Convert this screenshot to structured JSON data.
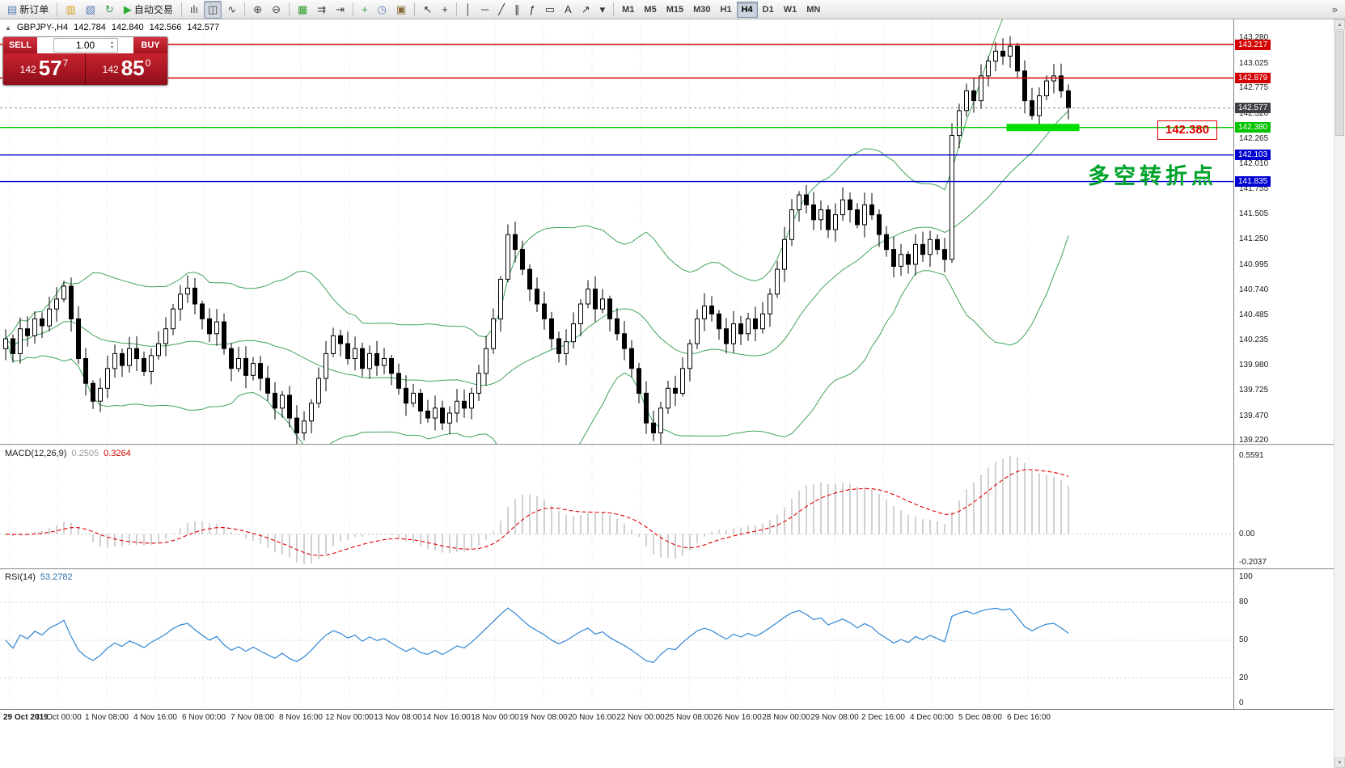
{
  "toolbar": {
    "items": [
      {
        "type": "button",
        "name": "new-order",
        "glyph": "▤",
        "glyph_color": "#5b7fb5",
        "label": "新订单"
      },
      {
        "type": "sep"
      },
      {
        "type": "button",
        "name": "new-chart",
        "glyph": "▥",
        "glyph_color": "#d7a021"
      },
      {
        "type": "button",
        "name": "profiles",
        "glyph": "▧",
        "glyph_color": "#5b7fb5"
      },
      {
        "type": "button",
        "name": "refresh",
        "glyph": "↻",
        "glyph_color": "#3f9e4f"
      },
      {
        "type": "button",
        "name": "auto-trading",
        "glyph": "▶",
        "glyph_color": "#2eaa2e",
        "label": "自动交易"
      },
      {
        "type": "sep"
      },
      {
        "type": "button",
        "name": "bar-chart-mode",
        "glyph": "ılı",
        "glyph_color": "#444444"
      },
      {
        "type": "button",
        "name": "candlestick-mode",
        "glyph": "◫",
        "glyph_color": "#444444",
        "active": true
      },
      {
        "type": "button",
        "name": "line-chart-mode",
        "glyph": "∿",
        "glyph_color": "#444444"
      },
      {
        "type": "sep"
      },
      {
        "type": "button",
        "name": "zoom-in",
        "glyph": "⊕",
        "glyph_color": "#444444"
      },
      {
        "type": "button",
        "name": "zoom-out",
        "glyph": "⊖",
        "glyph_color": "#444444"
      },
      {
        "type": "sep"
      },
      {
        "type": "button",
        "name": "tile-windows",
        "glyph": "▦",
        "glyph_color": "#2e9e2e"
      },
      {
        "type": "button",
        "name": "auto-scroll",
        "glyph": "⇉",
        "glyph_color": "#444444"
      },
      {
        "type": "button",
        "name": "chart-shift",
        "glyph": "⇥",
        "glyph_color": "#444444"
      },
      {
        "type": "sep"
      },
      {
        "type": "button",
        "name": "indicators-add",
        "glyph": "+",
        "glyph_color": "#2e9e2e"
      },
      {
        "type": "button",
        "name": "periods",
        "glyph": "◷",
        "glyph_color": "#5b7fb5"
      },
      {
        "type": "button",
        "name": "templates",
        "glyph": "▣",
        "glyph_color": "#8a6d3b"
      },
      {
        "type": "sep"
      },
      {
        "type": "button",
        "name": "cursor",
        "glyph": "↖",
        "glyph_color": "#333333"
      },
      {
        "type": "button",
        "name": "crosshair",
        "glyph": "+",
        "glyph_color": "#333333"
      },
      {
        "type": "sep"
      },
      {
        "type": "button",
        "name": "vertical-line-tool",
        "glyph": "│",
        "glyph_color": "#333333"
      },
      {
        "type": "button",
        "name": "horizontal-line-tool",
        "glyph": "─",
        "glyph_color": "#333333"
      },
      {
        "type": "button",
        "name": "trendline-tool",
        "glyph": "╱",
        "glyph_color": "#333333"
      },
      {
        "type": "button",
        "name": "channel-tool",
        "glyph": "∥",
        "glyph_color": "#333333"
      },
      {
        "type": "button",
        "name": "fibonacci-tool",
        "glyph": "ƒ",
        "glyph_color": "#333333"
      },
      {
        "type": "button",
        "name": "shapes-tool",
        "glyph": "▭",
        "glyph_color": "#333333"
      },
      {
        "type": "button",
        "name": "text-tool",
        "glyph": "A",
        "glyph_color": "#333333"
      },
      {
        "type": "button",
        "name": "arrows-tool",
        "glyph": "↗",
        "glyph_color": "#333333"
      },
      {
        "type": "button",
        "name": "objects-dropdown",
        "glyph": "▾",
        "glyph_color": "#333333"
      },
      {
        "type": "sep"
      },
      {
        "type": "tf",
        "label": "M1"
      },
      {
        "type": "tf",
        "label": "M5"
      },
      {
        "type": "tf",
        "label": "M15"
      },
      {
        "type": "tf",
        "label": "M30"
      },
      {
        "type": "tf",
        "label": "H1"
      },
      {
        "type": "tf",
        "label": "H4",
        "active": true
      },
      {
        "type": "tf",
        "label": "D1"
      },
      {
        "type": "tf",
        "label": "W1"
      },
      {
        "type": "tf",
        "label": "MN"
      },
      {
        "type": "button",
        "name": "toolbar-overflow",
        "glyph": "»",
        "glyph_color": "#555555",
        "right": true
      }
    ]
  },
  "ui": {
    "collapse": "▲",
    "stepper_up": "▴",
    "stepper_down": "▾",
    "scroll_up": "▲",
    "scroll_down": "▼"
  },
  "symbol_info": {
    "title": "GBPJPY-,H4",
    "open": "142.784",
    "high": "142.840",
    "low": "142.566",
    "close": "142.577"
  },
  "trade_panel": {
    "sell_label": "SELL",
    "buy_label": "BUY",
    "volume": "1.00",
    "sell_price": {
      "big": "142",
      "mid": "57",
      "sup": "7"
    },
    "buy_price": {
      "big": "142",
      "mid": "85",
      "sup": "0"
    }
  },
  "chart_data": {
    "type": "candlestick",
    "symbol": "GBPJPY",
    "timeframe": "H4",
    "closes": [
      140.25,
      140.1,
      140.35,
      140.28,
      140.45,
      140.38,
      140.55,
      140.65,
      140.78,
      140.45,
      140.05,
      139.8,
      139.62,
      139.75,
      139.95,
      140.1,
      139.98,
      140.15,
      140.05,
      139.92,
      140.08,
      140.2,
      140.35,
      140.55,
      140.7,
      140.76,
      140.6,
      140.45,
      140.3,
      140.42,
      140.15,
      139.95,
      140.05,
      139.88,
      140.0,
      139.85,
      139.7,
      139.55,
      139.68,
      139.45,
      139.3,
      139.42,
      139.6,
      139.85,
      140.1,
      140.28,
      140.2,
      140.05,
      140.15,
      139.95,
      140.1,
      139.98,
      140.05,
      139.9,
      139.75,
      139.6,
      139.7,
      139.52,
      139.45,
      139.55,
      139.4,
      139.5,
      139.62,
      139.55,
      139.7,
      139.9,
      140.15,
      140.45,
      140.85,
      141.3,
      141.15,
      140.95,
      140.75,
      140.6,
      140.45,
      140.25,
      140.1,
      140.22,
      140.4,
      140.6,
      140.75,
      140.55,
      140.65,
      140.45,
      140.3,
      140.15,
      139.95,
      139.7,
      139.4,
      139.3,
      139.55,
      139.75,
      139.7,
      139.95,
      140.2,
      140.45,
      140.58,
      140.5,
      140.35,
      140.2,
      140.4,
      140.3,
      140.45,
      140.35,
      140.5,
      140.7,
      140.95,
      141.25,
      141.55,
      141.7,
      141.6,
      141.45,
      141.55,
      141.35,
      141.5,
      141.65,
      141.55,
      141.4,
      141.6,
      141.5,
      141.3,
      141.15,
      140.98,
      141.1,
      141.0,
      141.2,
      141.1,
      141.25,
      141.15,
      141.05,
      142.3,
      142.55,
      142.75,
      142.65,
      142.9,
      143.05,
      143.15,
      143.1,
      143.2,
      142.95,
      142.65,
      142.5,
      142.7,
      142.85,
      142.9,
      142.75,
      142.577
    ],
    "last_close": 142.577,
    "price_axis": {
      "min": 139.19,
      "max": 143.47,
      "ticks": [
        "143.280",
        "143.025",
        "142.775",
        "142.520",
        "142.265",
        "142.010",
        "141.755",
        "141.505",
        "141.250",
        "140.995",
        "140.740",
        "140.485",
        "140.235",
        "139.980",
        "139.725",
        "139.470",
        "139.220"
      ]
    },
    "indicators": {
      "bollinger": {
        "period": 20,
        "deviation": 2,
        "color": "#3fa45b"
      },
      "macd": {
        "label": "MACD(12,26,9)",
        "values": [
          "0.2505",
          "0.3264"
        ],
        "axis_ticks": [
          "0.5591",
          "0.00",
          "-0.2037"
        ],
        "histogram_color": "#bdbdbd",
        "signal_color": "#e00000",
        "range": [
          -0.25,
          0.63
        ]
      },
      "rsi": {
        "label": "RSI(14)",
        "value": "53.2782",
        "axis_ticks": [
          100,
          80,
          50,
          20,
          0
        ],
        "levels": [
          80,
          50,
          20
        ],
        "line_color": "#2f86d6",
        "range": [
          0,
          100
        ]
      }
    },
    "hlines": [
      {
        "price": 143.217,
        "label": "143.217",
        "color": "#d40000"
      },
      {
        "price": 142.879,
        "label": "142.879",
        "color": "#d40000"
      },
      {
        "price": 142.38,
        "label": "142.380",
        "color": "#00c400"
      },
      {
        "price": 142.103,
        "label": "142.103",
        "color": "#0000d0"
      },
      {
        "price": 141.835,
        "label": "141.835",
        "color": "#0000d0"
      }
    ],
    "current_price_tag": {
      "price": 142.577,
      "label": "142.577",
      "bg": "#3f4147"
    },
    "highlight_zone": {
      "bar_start": 137.5,
      "bar_end": 147.5,
      "price": 142.38,
      "color": "#00dd00"
    },
    "price_note": {
      "text": "142.380",
      "color": "#e00000"
    },
    "annotation": {
      "text": "多空转折点",
      "color": "#00a32a"
    },
    "time_axis": [
      "29 Oct 2019",
      "31 Oct 00:00",
      "1 Nov 08:00",
      "4 Nov 16:00",
      "6 Nov 00:00",
      "7 Nov 08:00",
      "8 Nov 16:00",
      "12 Nov 00:00",
      "13 Nov 08:00",
      "14 Nov 16:00",
      "18 Nov 00:00",
      "19 Nov 08:00",
      "20 Nov 16:00",
      "22 Nov 00:00",
      "25 Nov 08:00",
      "26 Nov 16:00",
      "28 Nov 00:00",
      "29 Nov 08:00",
      "2 Dec 16:00",
      "4 Dec 00:00",
      "5 Dec 08:00",
      "6 Dec 16:00"
    ]
  }
}
